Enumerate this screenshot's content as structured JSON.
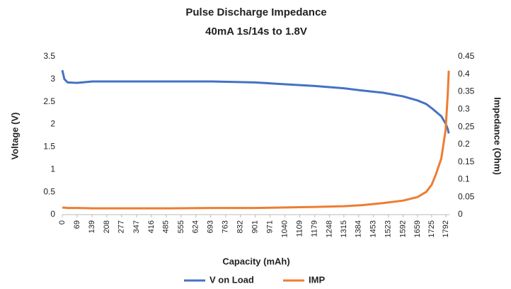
{
  "chart_data": {
    "type": "line",
    "title": "Pulse Discharge Impedance",
    "subtitle": "40mA 1s/14s to 1.8V",
    "x_label": "Capacity (mAh)",
    "y_label": "Voltage (V)",
    "y2_label": "Impedance (Ohm)",
    "x": [
      0,
      10,
      25,
      69,
      139,
      300,
      500,
      700,
      900,
      1000,
      1179,
      1315,
      1400,
      1500,
      1592,
      1659,
      1700,
      1725,
      1745,
      1770,
      1790,
      1800,
      1805
    ],
    "series": [
      {
        "name": "V on Load",
        "color": "#4472c4",
        "values": [
          3.2,
          3.0,
          2.93,
          2.92,
          2.95,
          2.95,
          2.95,
          2.95,
          2.93,
          2.9,
          2.85,
          2.8,
          2.75,
          2.7,
          2.62,
          2.53,
          2.45,
          2.36,
          2.28,
          2.18,
          2.02,
          1.9,
          1.8
        ]
      },
      {
        "name": "IMP",
        "color": "#ed7d31",
        "axis": "y2",
        "values": [
          0.02,
          0.02,
          0.019,
          0.019,
          0.018,
          0.018,
          0.018,
          0.019,
          0.019,
          0.02,
          0.022,
          0.024,
          0.027,
          0.033,
          0.04,
          0.05,
          0.065,
          0.085,
          0.115,
          0.16,
          0.24,
          0.34,
          0.41
        ]
      }
    ],
    "xlim": [
      0,
      1808
    ],
    "xticks": [
      0,
      69,
      139,
      208,
      277,
      347,
      416,
      485,
      555,
      624,
      693,
      763,
      832,
      901,
      971,
      1040,
      1109,
      1179,
      1248,
      1315,
      1384,
      1453,
      1523,
      1592,
      1659,
      1725,
      1792
    ],
    "ylim": [
      0,
      3.5
    ],
    "yticks": [
      0,
      0.5,
      1,
      1.5,
      2,
      2.5,
      3,
      3.5
    ],
    "y2lim": [
      0,
      0.45
    ],
    "y2ticks": [
      0,
      0.05,
      0.1,
      0.15,
      0.2,
      0.25,
      0.3,
      0.35,
      0.4,
      0.45
    ],
    "legend": "bottom",
    "grid": false
  }
}
